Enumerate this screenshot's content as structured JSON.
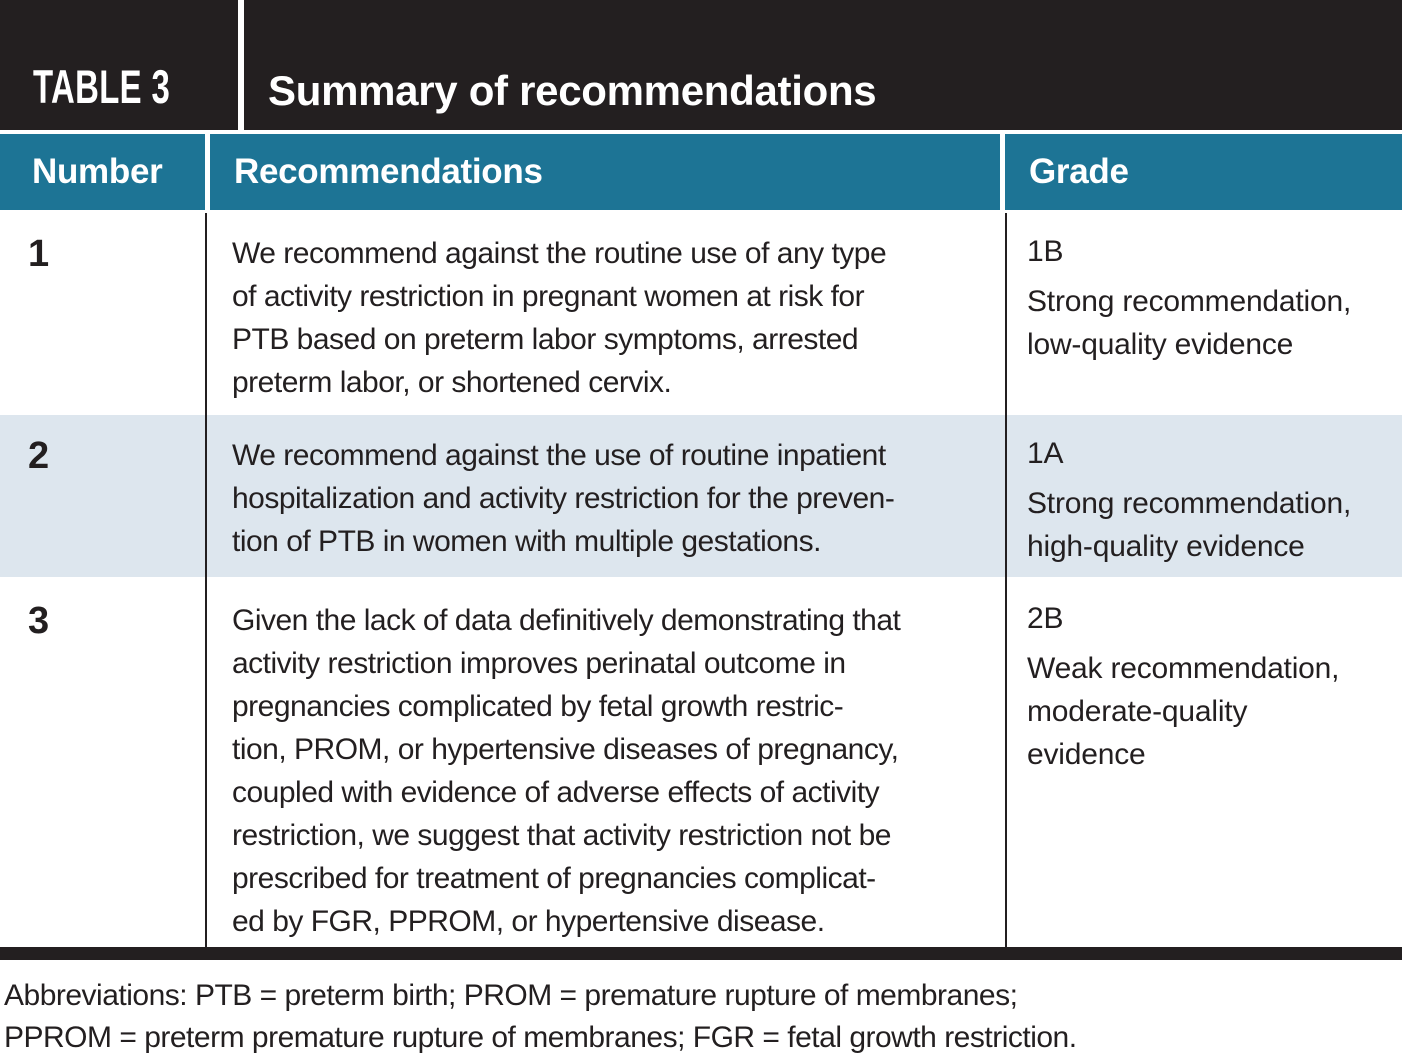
{
  "table": {
    "tag": "TABLE 3",
    "title": "Summary of recommendations",
    "columns": {
      "number": "Number",
      "recommendations": "Recommendations",
      "grade": "Grade"
    },
    "rows": [
      {
        "number": "1",
        "recommendation": "We recommend against the routine use of any type\nof activity restriction in pregnant women at risk for\nPTB based on preterm labor symptoms, arrested\npreterm labor, or shortened cervix.",
        "grade_code": "1B",
        "grade_description": "Strong recommendation,\nlow-quality evidence"
      },
      {
        "number": "2",
        "recommendation": "We recommend against the use of routine inpatient\nhospitalization and activity restriction for the preven-\ntion of PTB in women with multiple gestations.",
        "grade_code": "1A",
        "grade_description": "Strong recommendation,\nhigh-quality evidence"
      },
      {
        "number": "3",
        "recommendation": "Given the lack of data definitively demonstrating that\nactivity restriction improves perinatal outcome in\npregnancies complicated by fetal growth restric-\ntion, PROM, or hypertensive diseases of pregnancy,\ncoupled with evidence of adverse effects of activity\nrestriction, we suggest that activity restriction not be\nprescribed for treatment of pregnancies complicat-\ned by FGR, PPROM, or hypertensive disease.",
        "grade_code": "2B",
        "grade_description": "Weak recommendation,\nmoderate-quality\nevidence"
      }
    ],
    "footnote": "Abbreviations: PTB = preterm birth; PROM = premature rupture of membranes;\nPPROM = preterm premature rupture of membranes; FGR = fetal growth restriction."
  },
  "colors": {
    "header_dark": "#231f20",
    "header_teal": "#1d7495",
    "row_alternate": "#dde6ee",
    "text": "#231f20",
    "background": "#ffffff"
  }
}
